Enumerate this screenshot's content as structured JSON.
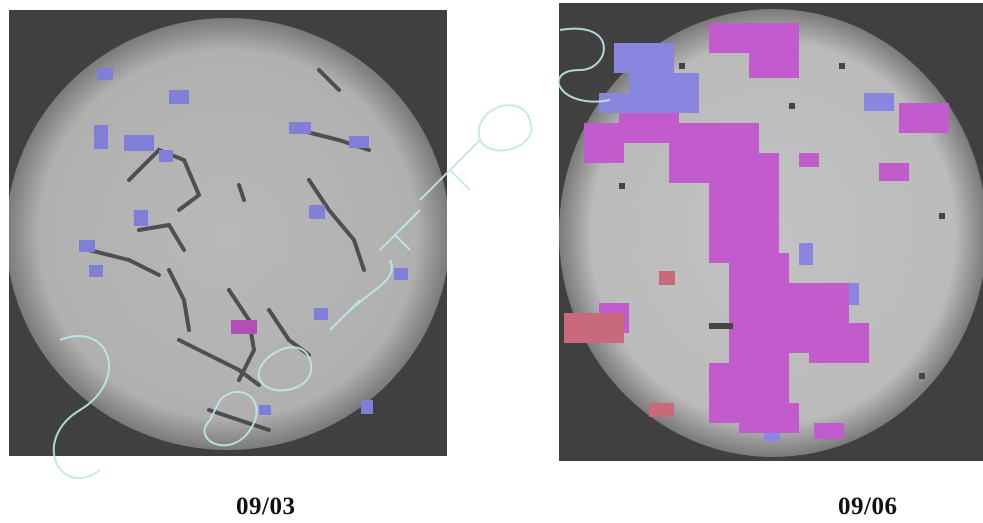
{
  "images": [
    {
      "caption": "09/03",
      "colors": {
        "background": "#404040",
        "field": "#b4b4b4",
        "vignette": "#7a7a7a",
        "stain_blue": "#7f7fd8",
        "stain_purple": "#b04fb8",
        "filament": "#3a3a3a"
      }
    },
    {
      "caption": "09/06",
      "colors": {
        "background": "#404040",
        "field": "#c0c0c0",
        "vignette": "#7a7a7a",
        "stain_purple": "#c25ccc",
        "stain_blue": "#8a86e0",
        "stain_red": "#c86a7a"
      }
    }
  ],
  "watermark": {
    "color": "#bfe8ec"
  }
}
